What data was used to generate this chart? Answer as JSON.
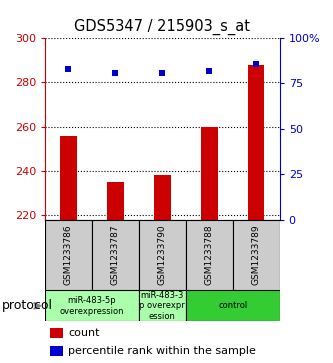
{
  "title": "GDS5347 / 215903_s_at",
  "samples": [
    "GSM1233786",
    "GSM1233787",
    "GSM1233790",
    "GSM1233788",
    "GSM1233789"
  ],
  "counts": [
    256,
    235,
    238,
    260,
    288
  ],
  "percentiles": [
    83,
    81,
    81,
    82,
    86
  ],
  "ylim_left": [
    218,
    300
  ],
  "ylim_right": [
    0,
    100
  ],
  "yticks_left": [
    220,
    240,
    260,
    280,
    300
  ],
  "yticks_right": [
    0,
    25,
    50,
    75,
    100
  ],
  "ytick_labels_right": [
    "0",
    "25",
    "50",
    "75",
    "100%"
  ],
  "bar_color": "#cc0000",
  "dot_color": "#0000cc",
  "group_spans": [
    [
      0,
      1,
      "miR-483-5p\noverexpression",
      "#aaffaa"
    ],
    [
      2,
      2,
      "miR-483-3\np overexpr\nession",
      "#aaffaa"
    ],
    [
      3,
      4,
      "control",
      "#33cc33"
    ]
  ],
  "protocol_label": "protocol",
  "legend_count_label": "count",
  "legend_pct_label": "percentile rank within the sample",
  "bar_bottom": 218,
  "bar_width": 0.35,
  "dot_size": 20
}
